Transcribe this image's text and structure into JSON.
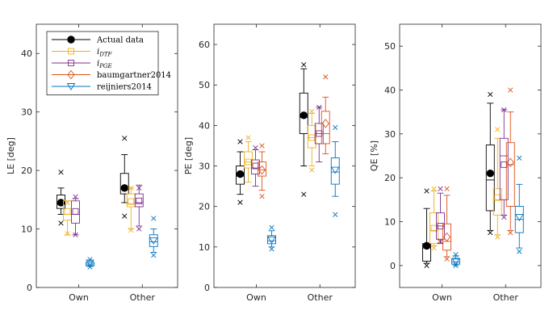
{
  "chart_data": {
    "type": "box",
    "categories": [
      "Own",
      "Other"
    ],
    "legend": [
      {
        "key": "actual",
        "label": "Actual data",
        "color": "#000000",
        "marker": "dot"
      },
      {
        "key": "dtf",
        "label": "i",
        "sub": "DTF",
        "color": "#edb120",
        "marker": "square"
      },
      {
        "key": "pge",
        "label": "i",
        "sub": "PGE",
        "color": "#7e2f8e",
        "marker": "square"
      },
      {
        "key": "baum",
        "label": "baumgartner2014",
        "color": "#d95319",
        "marker": "diamond"
      },
      {
        "key": "reij",
        "label": "reijniers2014",
        "color": "#0072bd",
        "marker": "triangle"
      }
    ],
    "panels": [
      {
        "id": "le",
        "ylabel": "LE [deg]",
        "ylim": [
          0,
          45
        ],
        "yticks": [
          0,
          10,
          20,
          30,
          40
        ],
        "yticklabels": [
          "0",
          "10",
          "20",
          "30",
          "40"
        ],
        "legend_location": "top-left",
        "boxes": [
          {
            "series": "actual",
            "cat": 0,
            "wmin": 12.5,
            "q1": 13.5,
            "med": 14.2,
            "q3": 15.8,
            "wmax": 17.0,
            "mean": 14.5,
            "outliers": [
              11.0,
              19.7
            ]
          },
          {
            "series": "dtf",
            "cat": 0,
            "wmin": 9.0,
            "q1": 11.5,
            "med": 12.5,
            "q3": 14.8,
            "wmax": 14.8,
            "mean": 13.0,
            "outliers": [
              9.2,
              14.5
            ]
          },
          {
            "series": "pge",
            "cat": 0,
            "wmin": 9.0,
            "q1": 11.0,
            "med": 12.5,
            "q3": 14.8,
            "wmax": 15.2,
            "mean": 13.0,
            "outliers": [
              9.0,
              15.5
            ]
          },
          {
            "series": "reij",
            "cat": 0,
            "wmin": 3.6,
            "q1": 3.7,
            "med": 4.0,
            "q3": 4.3,
            "wmax": 4.7,
            "mean": 4.2,
            "outliers": [
              3.5,
              4.8
            ]
          },
          {
            "series": "actual",
            "cat": 1,
            "wmin": 14.5,
            "q1": 16.0,
            "med": 16.8,
            "q3": 19.5,
            "wmax": 22.7,
            "mean": 17.0,
            "outliers": [
              12.2,
              25.5
            ]
          },
          {
            "series": "dtf",
            "cat": 1,
            "wmin": 10.0,
            "q1": 13.8,
            "med": 14.3,
            "q3": 16.0,
            "wmax": 17.0,
            "mean": 14.7,
            "outliers": [
              9.8,
              17.0
            ]
          },
          {
            "series": "pge",
            "cat": 1,
            "wmin": 10.5,
            "q1": 13.8,
            "med": 14.5,
            "q3": 16.0,
            "wmax": 17.5,
            "mean": 14.8,
            "outliers": [
              10.0,
              17.0
            ]
          },
          {
            "series": "reij",
            "cat": 1,
            "wmin": 6.0,
            "q1": 7.0,
            "med": 7.8,
            "q3": 9.0,
            "wmax": 10.0,
            "mean": 8.0,
            "outliers": [
              5.5,
              11.8
            ]
          }
        ],
        "texts": []
      },
      {
        "id": "pe",
        "ylabel": "PE [deg]",
        "ylim": [
          0,
          65
        ],
        "yticks": [
          0,
          10,
          20,
          30,
          40,
          50,
          60
        ],
        "yticklabels": [
          "0",
          "10",
          "20",
          "30",
          "40",
          "50",
          "60"
        ],
        "boxes": [
          {
            "series": "actual",
            "cat": 0,
            "wmin": 23.0,
            "q1": 25.5,
            "med": 27.5,
            "q3": 30.0,
            "wmax": 33.5,
            "mean": 28.0,
            "outliers": [
              21.0,
              36.0
            ]
          },
          {
            "series": "dtf",
            "cat": 0,
            "wmin": 26.0,
            "q1": 29.5,
            "med": 31.0,
            "q3": 33.5,
            "wmax": 36.0,
            "mean": 31.0,
            "outliers": [
              37.0
            ]
          },
          {
            "series": "pge",
            "cat": 0,
            "wmin": 25.0,
            "q1": 28.0,
            "med": 29.5,
            "q3": 31.5,
            "wmax": 34.0,
            "mean": 30.0,
            "outliers": [
              34.5
            ]
          },
          {
            "series": "baum",
            "cat": 0,
            "wmin": 24.0,
            "q1": 27.5,
            "med": 29.0,
            "q3": 31.0,
            "wmax": 33.5,
            "mean": 29.0,
            "outliers": [
              22.5,
              35.0
            ]
          },
          {
            "series": "reij",
            "cat": 0,
            "wmin": 10.0,
            "q1": 10.8,
            "med": 11.5,
            "q3": 12.8,
            "wmax": 14.0,
            "mean": 11.8,
            "outliers": [
              9.5,
              14.8
            ]
          },
          {
            "series": "actual",
            "cat": 1,
            "wmin": 30.0,
            "q1": 38.0,
            "med": 42.0,
            "q3": 48.0,
            "wmax": 54.0,
            "mean": 42.5,
            "outliers": [
              23.0,
              55.0
            ]
          },
          {
            "series": "dtf",
            "cat": 1,
            "wmin": 30.0,
            "q1": 34.5,
            "med": 37.0,
            "q3": 40.0,
            "wmax": 43.0,
            "mean": 37.0,
            "outliers": [
              29.0,
              43.5
            ]
          },
          {
            "series": "pge",
            "cat": 1,
            "wmin": 31.0,
            "q1": 35.5,
            "med": 38.0,
            "q3": 40.5,
            "wmax": 44.5,
            "mean": 38.0,
            "outliers": [
              44.5
            ]
          },
          {
            "series": "baum",
            "cat": 1,
            "wmin": 33.0,
            "q1": 35.5,
            "med": 38.0,
            "q3": 43.5,
            "wmax": 47.0,
            "mean": 40.5,
            "outliers": [
              52.0
            ]
          },
          {
            "series": "reij",
            "cat": 1,
            "wmin": 22.5,
            "q1": 25.5,
            "med": 28.5,
            "q3": 32.0,
            "wmax": 36.0,
            "mean": 29.0,
            "outliers": [
              18.0,
              39.5
            ]
          }
        ],
        "texts": []
      },
      {
        "id": "qe",
        "ylabel": "QE [%]",
        "ylim": [
          -5,
          55
        ],
        "yticks": [
          0,
          10,
          20,
          30,
          40,
          50
        ],
        "yticklabels": [
          "0",
          "10",
          "20",
          "30",
          "40",
          "50"
        ],
        "boxes": [
          {
            "series": "actual",
            "cat": 0,
            "wmin": 0.5,
            "q1": 1.0,
            "med": 4.0,
            "q3": 5.0,
            "wmax": 13.0,
            "mean": 4.5,
            "outliers": [
              0.0,
              17.0
            ]
          },
          {
            "series": "dtf",
            "cat": 0,
            "wmin": 4.5,
            "q1": 5.0,
            "med": 8.0,
            "q3": 12.0,
            "wmax": 17.0,
            "mean": 8.5,
            "outliers": [
              4.0,
              17.5
            ]
          },
          {
            "series": "pge",
            "cat": 0,
            "wmin": 5.0,
            "q1": 6.0,
            "med": 9.0,
            "q3": 12.0,
            "wmax": 16.5,
            "mean": 9.0,
            "outliers": [
              5.5,
              17.5
            ]
          },
          {
            "series": "baum",
            "cat": 0,
            "wmin": 2.0,
            "q1": 3.5,
            "med": 5.5,
            "q3": 9.5,
            "wmax": 16.0,
            "mean": 6.5,
            "outliers": [
              1.5,
              17.5
            ]
          },
          {
            "series": "reij",
            "cat": 0,
            "wmin": 0.0,
            "q1": 0.3,
            "med": 0.8,
            "q3": 1.5,
            "wmax": 2.2,
            "mean": 1.0,
            "outliers": [
              0.0,
              2.5
            ]
          },
          {
            "series": "actual",
            "cat": 1,
            "wmin": 8.0,
            "q1": 12.5,
            "med": 19.5,
            "q3": 27.5,
            "wmax": 37.0,
            "mean": 21.0,
            "outliers": [
              7.5,
              39.0
            ]
          },
          {
            "series": "dtf",
            "cat": 1,
            "wmin": 7.0,
            "q1": 11.5,
            "med": 15.0,
            "q3": 17.5,
            "wmax": 29.0,
            "mean": 15.5,
            "outliers": [
              6.5,
              31.0
            ]
          },
          {
            "series": "pge",
            "cat": 1,
            "wmin": 11.5,
            "q1": 15.0,
            "med": 25.0,
            "q3": 29.0,
            "wmax": 35.5,
            "mean": 23.0,
            "outliers": [
              11.0,
              35.5
            ]
          },
          {
            "series": "baum",
            "cat": 1,
            "wmin": 8.0,
            "q1": 13.5,
            "med": 23.0,
            "q3": 28.0,
            "wmax": 35.0,
            "mean": 23.5,
            "outliers": [
              7.5,
              40.0
            ]
          },
          {
            "series": "reij",
            "cat": 1,
            "wmin": 4.0,
            "q1": 7.5,
            "med": 10.5,
            "q3": 13.5,
            "wmax": 18.5,
            "mean": 11.0,
            "outliers": [
              3.2,
              24.5
            ]
          }
        ],
        "texts": []
      }
    ]
  }
}
